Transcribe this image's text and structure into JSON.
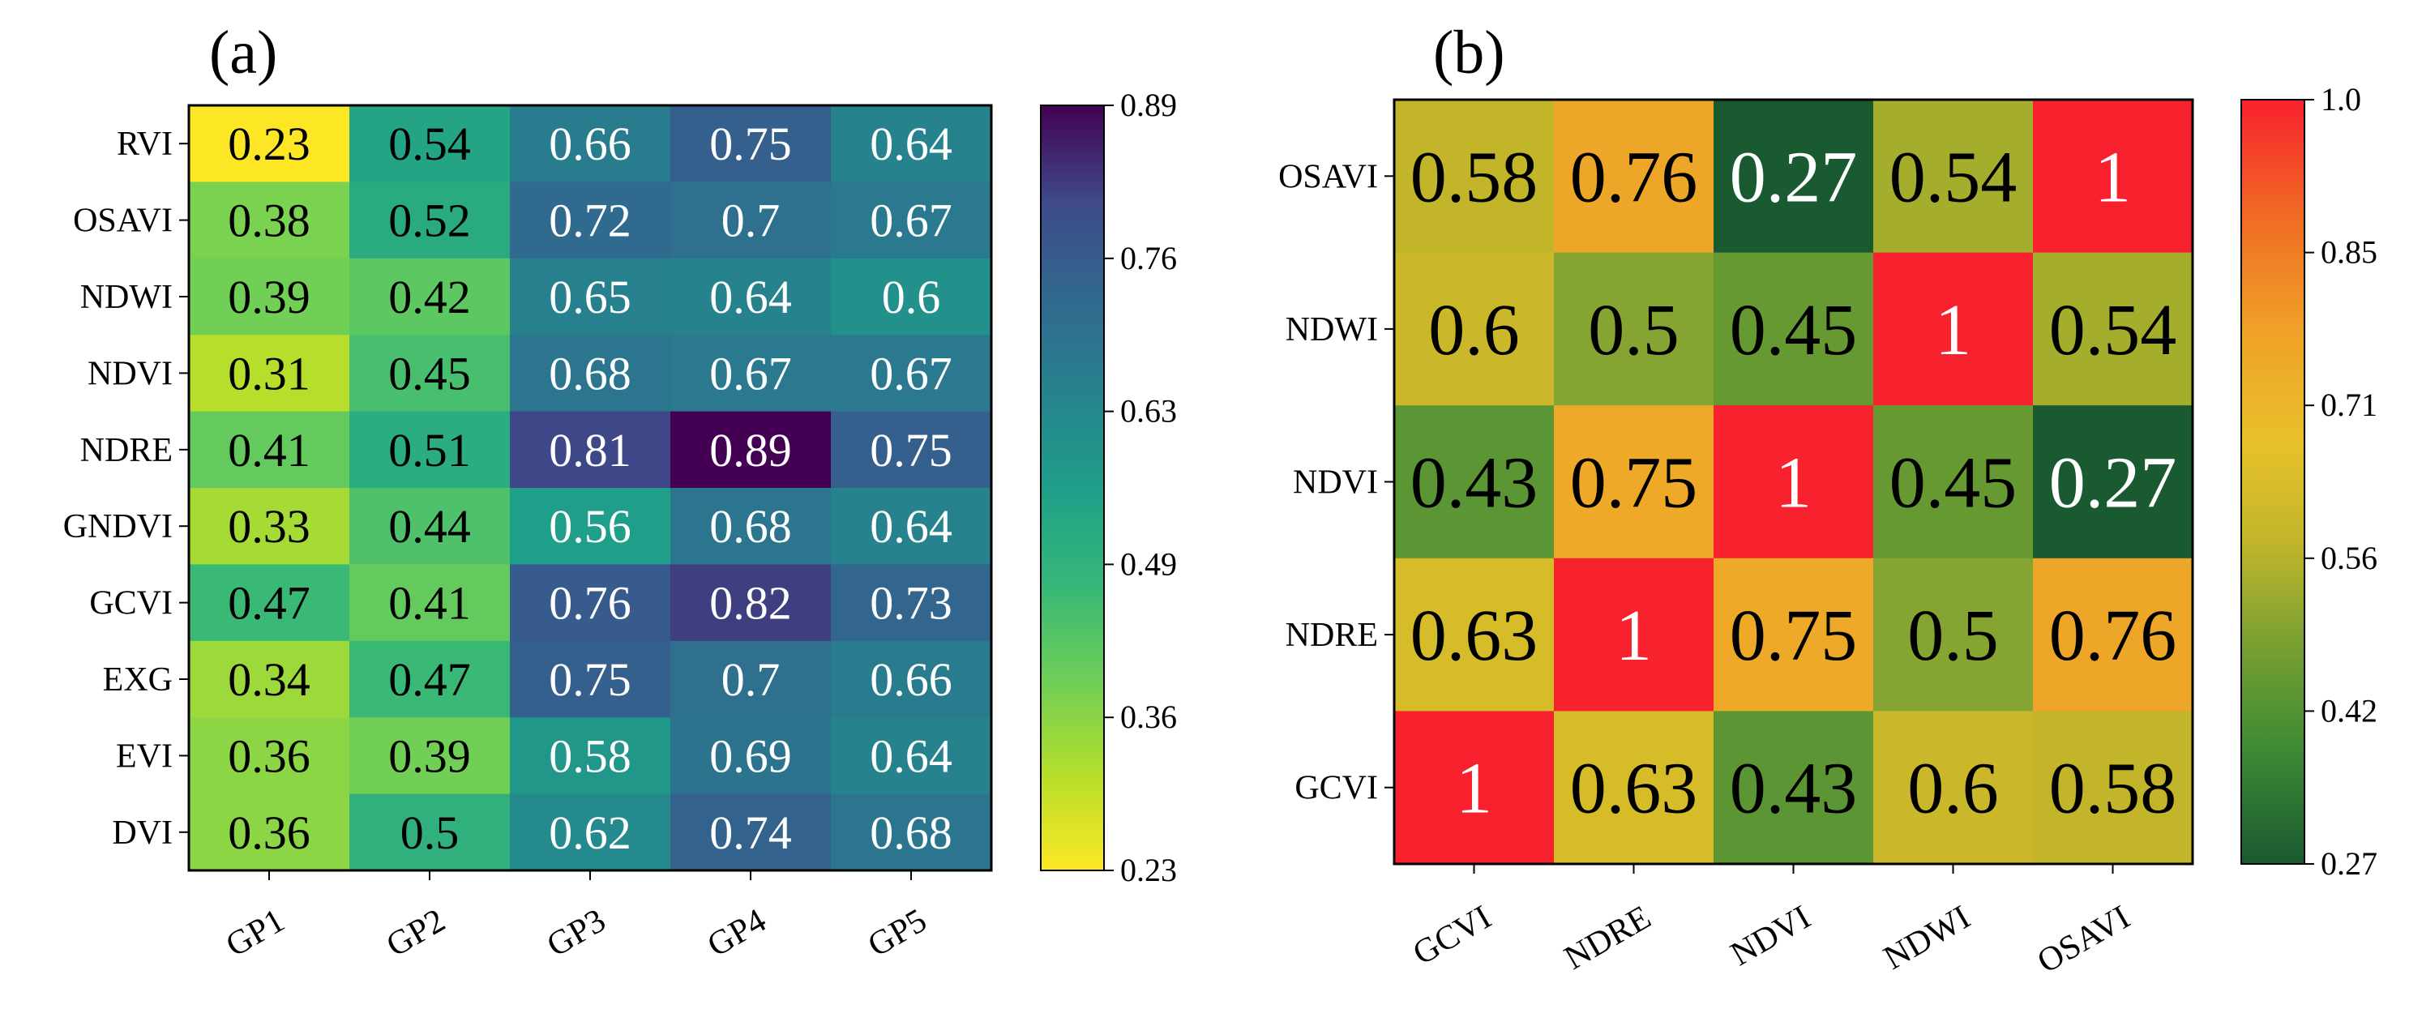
{
  "chart_data": [
    {
      "type": "heatmap",
      "panel_label": "(a)",
      "rows": [
        "RVI",
        "OSAVI",
        "NDWI",
        "NDVI",
        "NDRE",
        "GNDVI",
        "GCVI",
        "EXG",
        "EVI",
        "DVI"
      ],
      "columns": [
        "GP1",
        "GP2",
        "GP3",
        "GP4",
        "GP5"
      ],
      "values": [
        [
          0.23,
          0.54,
          0.66,
          0.75,
          0.64
        ],
        [
          0.38,
          0.52,
          0.72,
          0.7,
          0.67
        ],
        [
          0.39,
          0.42,
          0.65,
          0.64,
          0.6
        ],
        [
          0.31,
          0.45,
          0.68,
          0.67,
          0.67
        ],
        [
          0.41,
          0.51,
          0.81,
          0.89,
          0.75
        ],
        [
          0.33,
          0.44,
          0.56,
          0.68,
          0.64
        ],
        [
          0.47,
          0.41,
          0.76,
          0.82,
          0.73
        ],
        [
          0.34,
          0.47,
          0.75,
          0.7,
          0.66
        ],
        [
          0.36,
          0.39,
          0.58,
          0.69,
          0.64
        ],
        [
          0.36,
          0.5,
          0.62,
          0.74,
          0.68
        ]
      ],
      "colormap": "viridis",
      "colorbar": {
        "min": 0.23,
        "max": 0.89,
        "ticks": [
          "0.89",
          "0.76",
          "0.63",
          "0.49",
          "0.36",
          "0.23"
        ]
      }
    },
    {
      "type": "heatmap",
      "panel_label": "(b)",
      "rows": [
        "OSAVI",
        "NDWI",
        "NDVI",
        "NDRE",
        "GCVI"
      ],
      "columns": [
        "GCVI",
        "NDRE",
        "NDVI",
        "NDWI",
        "OSAVI"
      ],
      "values": [
        [
          0.58,
          0.76,
          0.27,
          0.54,
          1
        ],
        [
          0.6,
          0.5,
          0.45,
          1,
          0.54
        ],
        [
          0.43,
          0.75,
          1,
          0.45,
          0.27
        ],
        [
          0.63,
          1,
          0.75,
          0.5,
          0.76
        ],
        [
          1,
          0.63,
          0.43,
          0.6,
          0.58
        ]
      ],
      "colormap": "RdYlGn_r",
      "colorbar": {
        "min": 0.27,
        "max": 1.0,
        "ticks": [
          "1.0",
          "0.85",
          "0.71",
          "0.56",
          "0.42",
          "0.27"
        ]
      }
    }
  ]
}
